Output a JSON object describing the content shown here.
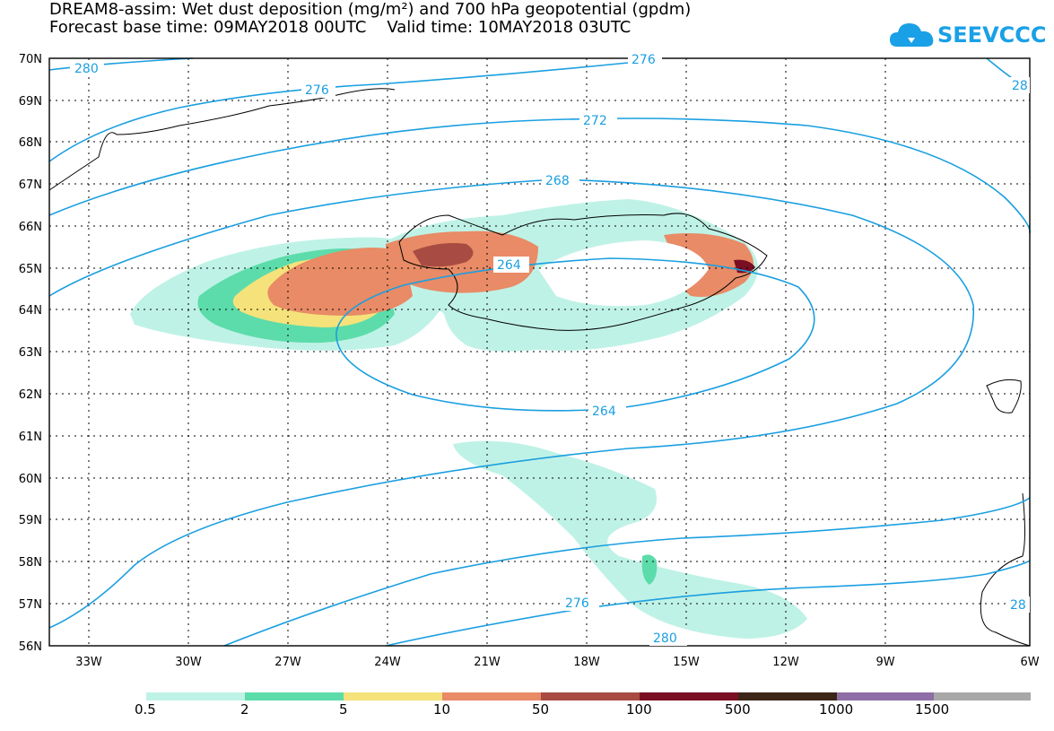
{
  "title_line1": "DREAM8-assim: Wet dust deposition (mg/m²) and 700 hPa geopotential (gpdm)",
  "title_line2": "Forecast base time: 09MAY2018 00UTC    Valid time: 10MAY2018 03UTC",
  "logo_text": "SEEVCCC",
  "lat_labels": [
    "70N",
    "69N",
    "68N",
    "67N",
    "66N",
    "65N",
    "64N",
    "63N",
    "62N",
    "61N",
    "60N",
    "59N",
    "58N",
    "57N",
    "56N"
  ],
  "lon_labels": [
    "33W",
    "30W",
    "27W",
    "24W",
    "21W",
    "18W",
    "15W",
    "12W",
    "9W",
    "6W"
  ],
  "contour_labels": {
    "c280a": "280",
    "c276a": "276",
    "c276b": "276",
    "c280b": "28",
    "c272": "272",
    "c268": "268",
    "c264a": "264",
    "c264b": "264",
    "c276c": "276",
    "c280c": "280",
    "c28d": "28"
  },
  "legend": {
    "labels": [
      "0.5",
      "2",
      "5",
      "10",
      "50",
      "100",
      "500",
      "1000",
      "1500"
    ],
    "colors": [
      "#bff2e6",
      "#5cdcaa",
      "#f5e27a",
      "#e88b66",
      "#a84c43",
      "#7a0f24",
      "#3b2618",
      "#8e6ea6",
      "#a8a8a8"
    ]
  },
  "colors": {
    "contour": "#1a9fe0",
    "coast": "#000000"
  }
}
